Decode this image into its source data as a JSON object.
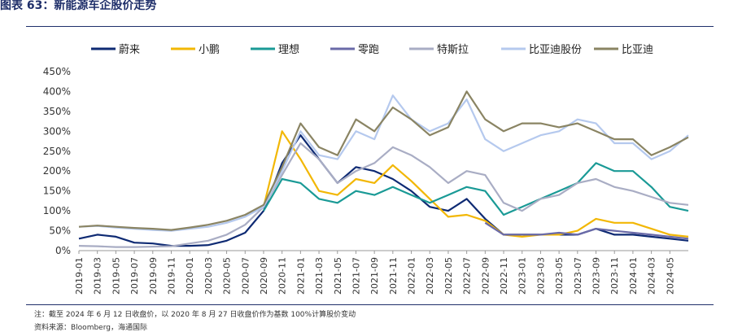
{
  "figure": {
    "title": "图表 63：新能源车企股价走势",
    "footnote": "注：截至 2024 年 6 月 12 日收盘价，以 2020 年 8 月 27 日收盘价作为基数 100%计算股价变动",
    "source": "资料来源：Bloomberg，海通国际"
  },
  "chart_data": {
    "type": "line",
    "title": "",
    "xlabel": "",
    "ylabel": "",
    "ylim": [
      0,
      450
    ],
    "y_ticks": [
      "0%",
      "50%",
      "100%",
      "150%",
      "200%",
      "250%",
      "300%",
      "350%",
      "400%",
      "450%"
    ],
    "x_ticks": [
      "2019-01",
      "2019-03",
      "2019-05",
      "2019-07",
      "2019-09",
      "2019-11",
      "2020-01",
      "2020-03",
      "2020-05",
      "2020-07",
      "2020-09",
      "2020-11",
      "2021-01",
      "2021-03",
      "2021-05",
      "2021-07",
      "2021-09",
      "2021-11",
      "2022-01",
      "2022-03",
      "2022-05",
      "2022-07",
      "2022-09",
      "2022-11",
      "2023-01",
      "2023-03",
      "2023-05",
      "2023-07",
      "2023-09",
      "2023-11",
      "2024-01",
      "2024-03",
      "2024-05"
    ],
    "legend_position": "top",
    "grid": false,
    "x": [
      "2019-01",
      "2019-03",
      "2019-05",
      "2019-07",
      "2019-09",
      "2019-11",
      "2020-01",
      "2020-03",
      "2020-05",
      "2020-07",
      "2020-09",
      "2020-11",
      "2021-01",
      "2021-03",
      "2021-05",
      "2021-07",
      "2021-09",
      "2021-11",
      "2022-01",
      "2022-03",
      "2022-05",
      "2022-07",
      "2022-09",
      "2022-11",
      "2023-01",
      "2023-03",
      "2023-05",
      "2023-07",
      "2023-09",
      "2023-11",
      "2024-01",
      "2024-03",
      "2024-05",
      "2024-06"
    ],
    "series": [
      {
        "name": "蔚来",
        "color": "#0e2a73",
        "values": [
          30,
          40,
          35,
          20,
          18,
          12,
          12,
          14,
          25,
          45,
          100,
          220,
          290,
          230,
          170,
          210,
          200,
          180,
          150,
          110,
          100,
          130,
          80,
          40,
          40,
          40,
          40,
          40,
          55,
          40,
          40,
          35,
          30,
          25
        ]
      },
      {
        "name": "小鹏",
        "color": "#f2b705",
        "values": [
          null,
          null,
          null,
          null,
          null,
          null,
          null,
          null,
          null,
          null,
          110,
          300,
          230,
          150,
          140,
          180,
          170,
          215,
          175,
          130,
          85,
          90,
          75,
          40,
          35,
          40,
          40,
          50,
          80,
          70,
          70,
          55,
          40,
          35
        ]
      },
      {
        "name": "理想",
        "color": "#1a9a96",
        "values": [
          null,
          null,
          null,
          null,
          null,
          null,
          null,
          null,
          null,
          null,
          100,
          180,
          170,
          130,
          120,
          150,
          140,
          160,
          140,
          120,
          140,
          160,
          150,
          90,
          110,
          130,
          150,
          170,
          220,
          200,
          200,
          160,
          110,
          100
        ]
      },
      {
        "name": "零跑",
        "color": "#6a6aa8",
        "values": [
          null,
          null,
          null,
          null,
          null,
          null,
          null,
          null,
          null,
          null,
          null,
          null,
          null,
          null,
          null,
          null,
          null,
          null,
          null,
          null,
          null,
          null,
          70,
          40,
          40,
          40,
          45,
          40,
          55,
          50,
          45,
          40,
          35,
          30
        ]
      },
      {
        "name": "特斯拉",
        "color": "#a9adc4",
        "values": [
          12,
          11,
          9,
          9,
          10,
          11,
          18,
          25,
          40,
          65,
          110,
          190,
          270,
          230,
          170,
          200,
          220,
          260,
          240,
          210,
          170,
          200,
          190,
          120,
          100,
          130,
          140,
          170,
          180,
          160,
          150,
          135,
          120,
          115
        ]
      },
      {
        "name": "比亚迪股份",
        "color": "#b5c9ee",
        "values": [
          60,
          62,
          58,
          55,
          52,
          50,
          55,
          60,
          70,
          85,
          110,
          200,
          300,
          240,
          230,
          300,
          280,
          390,
          330,
          300,
          320,
          380,
          280,
          250,
          270,
          290,
          300,
          330,
          320,
          270,
          270,
          230,
          250,
          290
        ]
      },
      {
        "name": "比亚迪",
        "color": "#8a8463",
        "values": [
          60,
          63,
          60,
          57,
          55,
          52,
          58,
          65,
          75,
          90,
          115,
          210,
          320,
          260,
          240,
          330,
          300,
          360,
          330,
          290,
          310,
          400,
          330,
          300,
          320,
          320,
          310,
          320,
          300,
          280,
          280,
          240,
          260,
          285
        ]
      }
    ]
  }
}
